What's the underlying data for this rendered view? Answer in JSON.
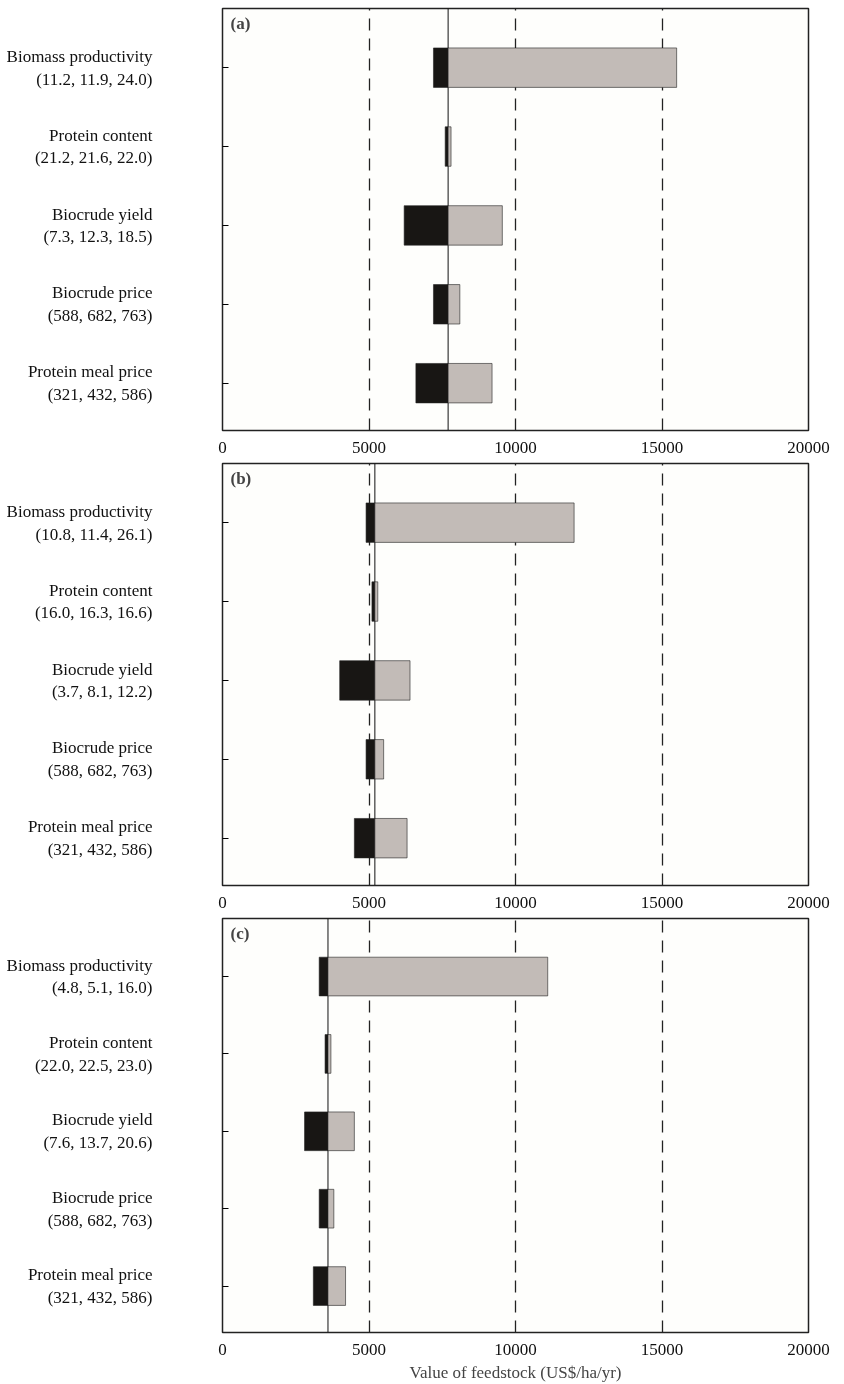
{
  "chart_data": [
    {
      "type": "bar",
      "title": "(a)",
      "orientation": "horizontal",
      "categories": [
        "Biomass productivity\n(11.2, 11.9, 24.0)",
        "Protein content\n(21.2, 21.6, 22.0)",
        "Biocrude yield\n(7.3, 12.3, 18.5)",
        "Biocrude price\n(588, 682, 763)",
        "Protein meal price\n(321, 432, 586)"
      ],
      "series": [
        {
          "color": "#181614",
          "base": [
            7200,
            7600,
            6200,
            7200,
            6600
          ],
          "values": [
            500,
            100,
            1500,
            500,
            1100
          ]
        },
        {
          "color": "#c2bbb7",
          "base": [
            7700,
            7700,
            7700,
            7700,
            7700
          ],
          "values": [
            7800,
            100,
            1850,
            400,
            1500
          ]
        }
      ],
      "xlim": [
        0,
        20000
      ],
      "xticks": [
        0,
        5000,
        10000,
        15000,
        20000
      ],
      "grid": "x",
      "ref_lines": [
        {
          "axis": "x",
          "value": 7700,
          "label": null
        }
      ]
    },
    {
      "type": "bar",
      "title": "(b)",
      "orientation": "horizontal",
      "categories": [
        "Biomass productivity\n(10.8, 11.4, 26.1)",
        "Protein content\n(16.0, 16.3, 16.6)",
        "Biocrude yield\n(3.7, 8.1, 12.2)",
        "Biocrude price\n(588, 682, 763)",
        "Protein meal price\n(321, 432, 586)"
      ],
      "series": [
        {
          "color": "#181614",
          "base": [
            4900,
            5100,
            4000,
            4900,
            4500
          ],
          "values": [
            300,
            100,
            1200,
            300,
            700
          ]
        },
        {
          "color": "#c2bbb7",
          "base": [
            5200,
            5200,
            5200,
            5200,
            5200
          ],
          "values": [
            6800,
            100,
            1200,
            300,
            1100
          ]
        }
      ],
      "xlim": [
        0,
        20000
      ],
      "xticks": [
        0,
        5000,
        10000,
        15000,
        20000
      ],
      "grid": "x",
      "ref_lines": [
        {
          "axis": "x",
          "value": 5200,
          "label": null
        }
      ]
    },
    {
      "type": "bar",
      "title": "(c)",
      "orientation": "horizontal",
      "xlabel": "Value of feedstock (US$/ha/yr)",
      "categories": [
        "Biomass productivity\n(4.8, 5.1, 16.0)",
        "Protein content\n(22.0, 22.5, 23.0)",
        "Biocrude yield\n(7.6, 13.7, 20.6)",
        "Biocrude price\n(588, 682, 763)",
        "Protein meal price\n(321, 432, 586)"
      ],
      "series": [
        {
          "color": "#181614",
          "base": [
            3300,
            3500,
            2800,
            3300,
            3100
          ],
          "values": [
            300,
            100,
            800,
            300,
            500
          ]
        },
        {
          "color": "#c2bbb7",
          "base": [
            3600,
            3600,
            3600,
            3600,
            3600
          ],
          "values": [
            7500,
            100,
            900,
            200,
            600
          ]
        }
      ],
      "xlim": [
        0,
        20000
      ],
      "xticks": [
        0,
        5000,
        10000,
        15000,
        20000
      ],
      "grid": "x",
      "ref_lines": [
        {
          "axis": "x",
          "value": 3600,
          "label": null
        }
      ]
    }
  ]
}
